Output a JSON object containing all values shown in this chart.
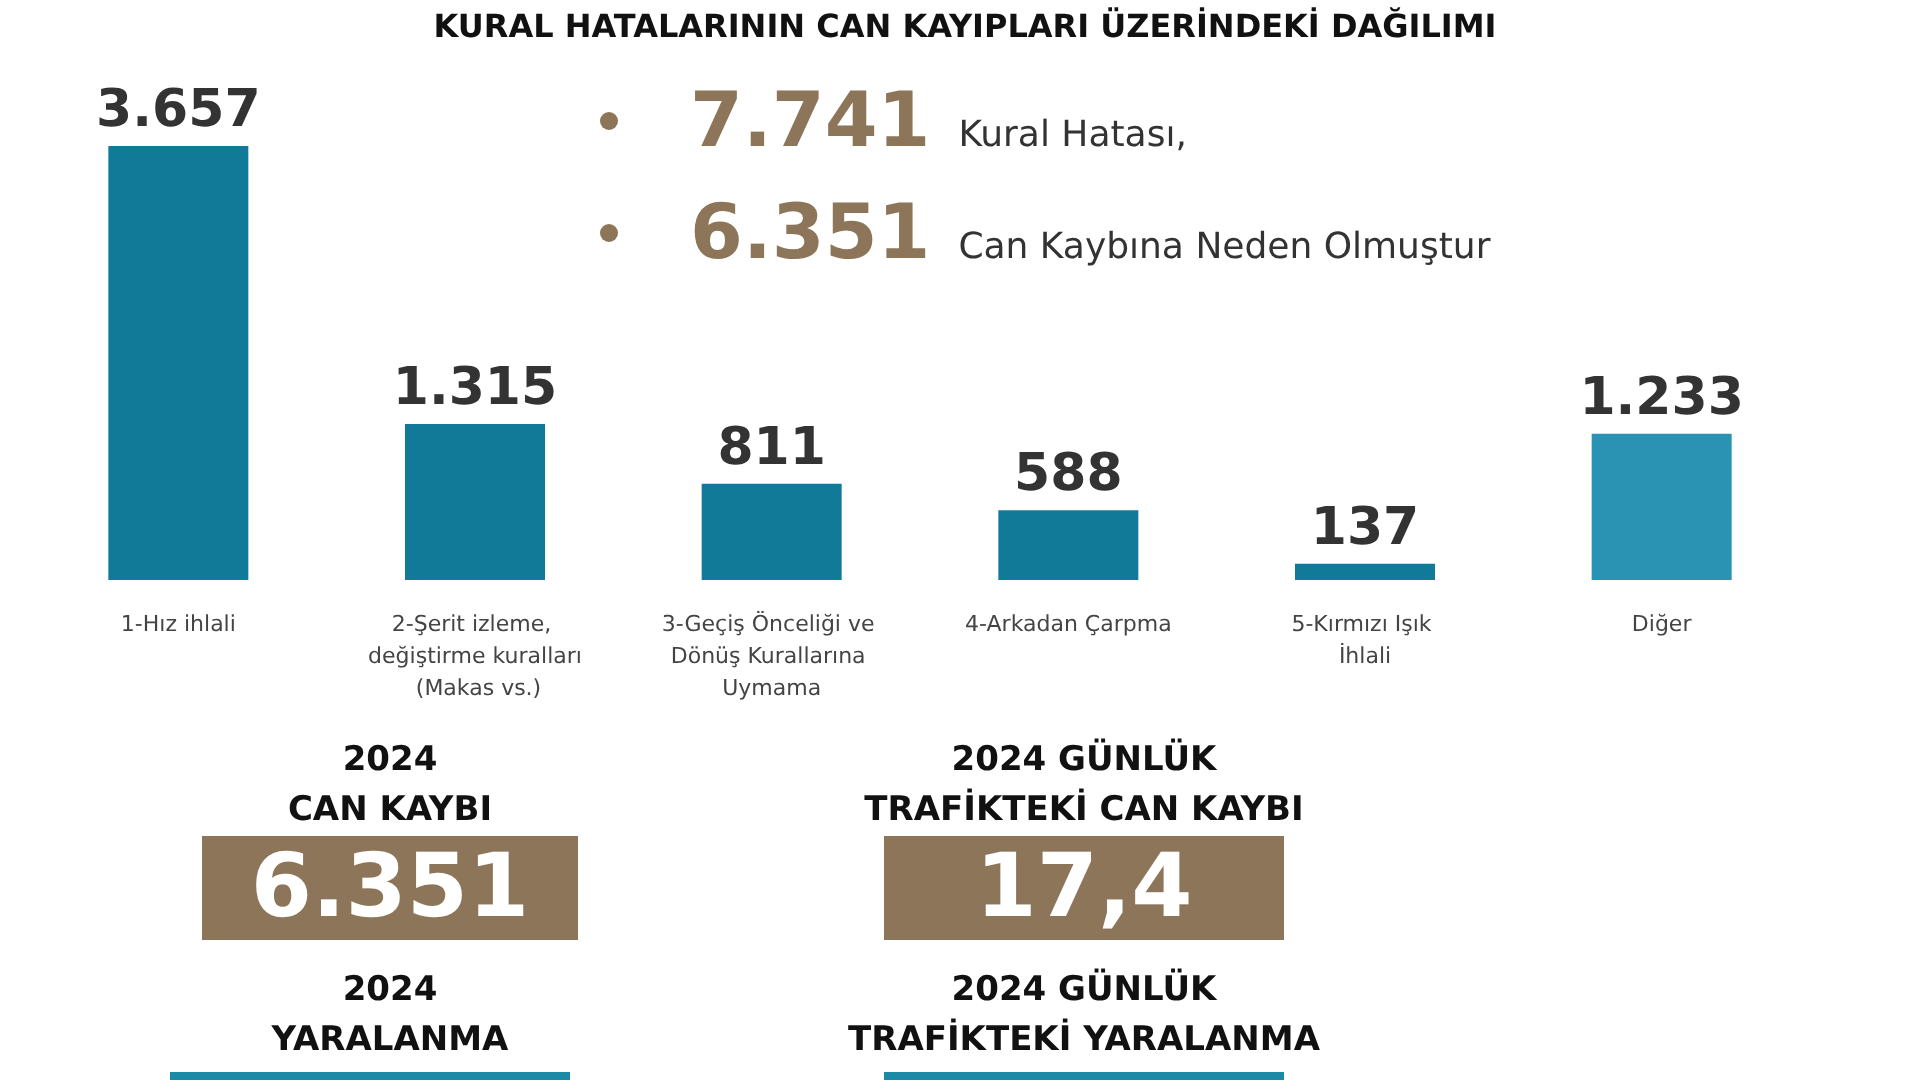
{
  "chart_data": {
    "type": "bar",
    "title": "KURAL HATALARININ CAN KAYIPLARI ÜZERİNDEKİ DAĞILIMI",
    "categories": [
      "1-Hız ihlali",
      "2-Şerit izleme, değiştirme kuralları (Makas vs.)",
      "3-Geçiş Önceliği ve Dönüş Kurallarına Uymama",
      "4-Arkadan Çarpma",
      "5-Kırmızı Işık İhlali",
      "Diğer"
    ],
    "values": [
      3657,
      1315,
      811,
      588,
      137,
      1233
    ],
    "colors": [
      "#127a99",
      "#127a99",
      "#127a99",
      "#127a99",
      "#127a99",
      "#2a93b3"
    ],
    "value_labels": [
      "3.657",
      "1.315",
      "811",
      "588",
      "137",
      "1.233"
    ],
    "grid": false,
    "tick_labels": "x",
    "annotations": [
      "7.741",
      "Kural Hatası,",
      "6.351",
      "Can Kaybına Neden Olmuştur",
      "2024\nCAN KAYBI",
      "6.351",
      "2024 GÜNLÜK\nTRAFİKTEKİ CAN KAYBI",
      "17,4",
      "2024\nYARALANMA",
      "2024 GÜNLÜK\nTRAFİKTEKİ YARALANMA"
    ]
  }
}
